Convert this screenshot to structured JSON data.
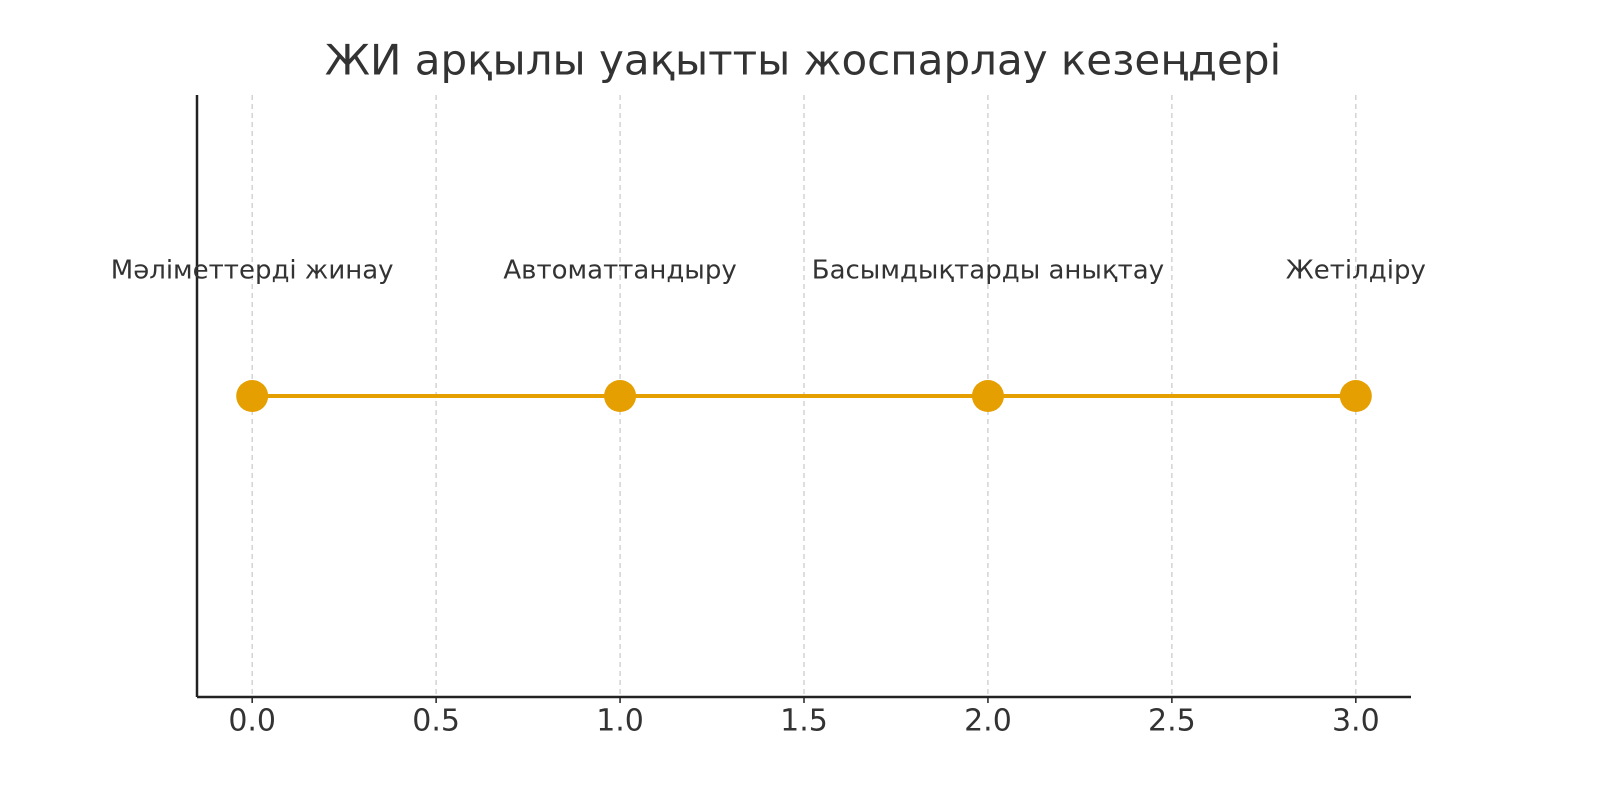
{
  "chart_data": {
    "type": "timeline",
    "title": "ЖИ арқылы уақытты жоспарлау кезеңдері",
    "x": [
      0,
      1,
      2,
      3
    ],
    "values": [
      1,
      1,
      1,
      1
    ],
    "labels": [
      "Мәліметтерді жинау",
      "Автоматтандыру",
      "Басымдықтарды анықтау",
      "Жетілдіру"
    ],
    "color": "#e69f00",
    "xlim": [
      -0.15,
      3.15
    ],
    "ylim": [
      0.94,
      1.06
    ],
    "xticks": [
      {
        "value": 0,
        "label": "0.0"
      },
      0.5,
      {
        "value": 1,
        "label": "1.0"
      },
      1.5,
      {
        "value": 2,
        "label": "2.0"
      },
      2.5,
      {
        "value": 3,
        "label": "3.0"
      }
    ],
    "grid": true
  }
}
